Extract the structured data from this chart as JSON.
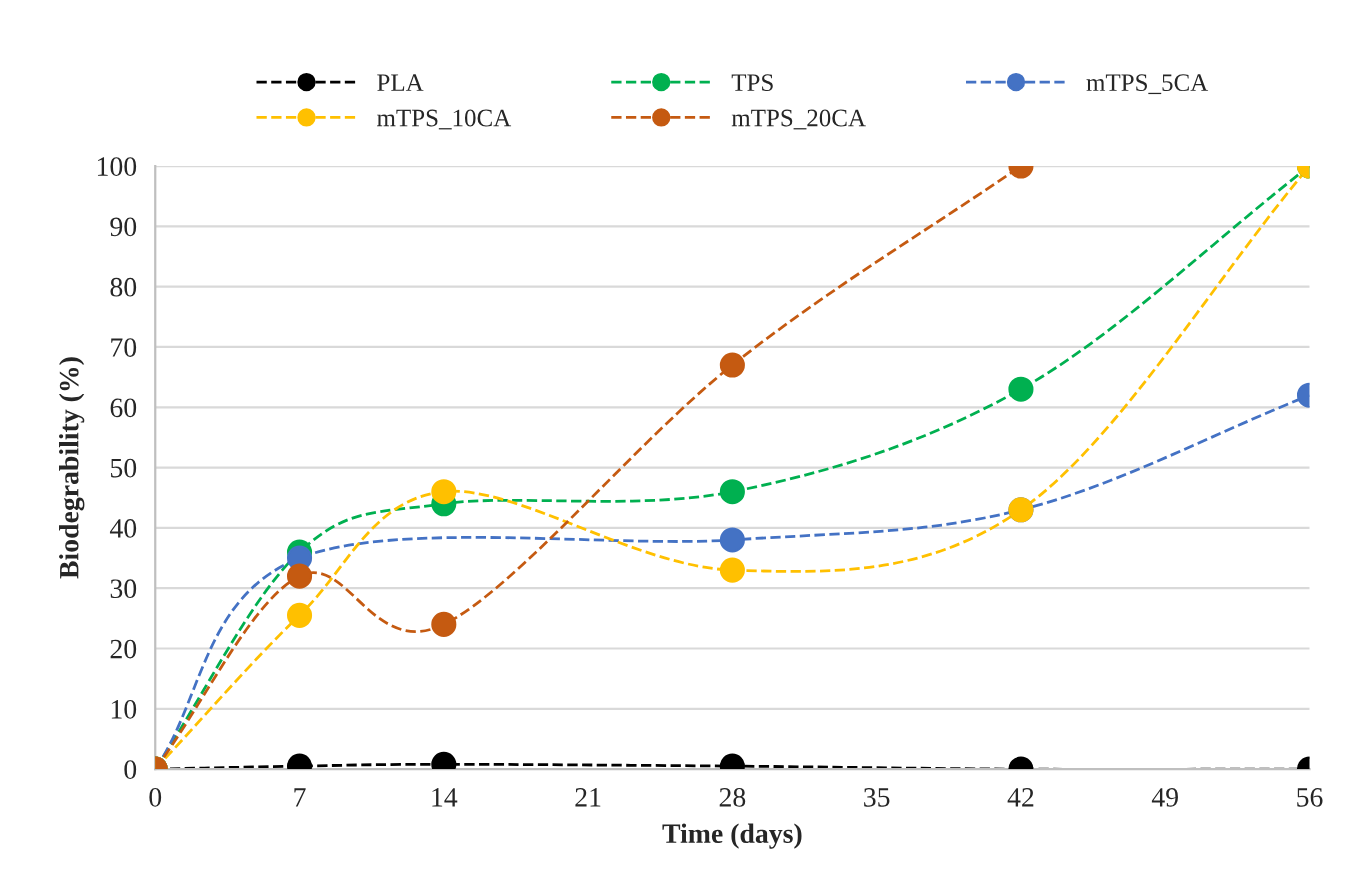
{
  "chart_data": {
    "type": "line",
    "xlabel": "Time (days)",
    "ylabel": "Biodegrability (%)",
    "x": [
      0,
      7,
      14,
      28,
      42,
      56
    ],
    "series": [
      {
        "name": "PLA",
        "color": "#000000",
        "values": [
          0,
          0.5,
          0.8,
          0.5,
          0,
          0
        ]
      },
      {
        "name": "TPS",
        "color": "#00b050",
        "values": [
          0,
          36,
          44,
          46,
          63,
          100
        ]
      },
      {
        "name": "mTPS_5CA",
        "color": "#4472c4",
        "values": [
          0,
          35,
          null,
          38,
          43,
          62
        ]
      },
      {
        "name": "mTPS_10CA",
        "color": "#ffc000",
        "values": [
          0,
          25.5,
          46,
          33,
          43,
          100
        ]
      },
      {
        "name": "mTPS_20CA",
        "color": "#c55a11",
        "values": [
          0,
          32,
          24,
          67,
          100,
          null
        ]
      }
    ],
    "xlim": [
      0,
      56
    ],
    "xticks": [
      0,
      7,
      14,
      21,
      28,
      35,
      42,
      49,
      56
    ],
    "ylim": [
      0,
      100
    ],
    "yticks": [
      0,
      10,
      20,
      30,
      40,
      50,
      60,
      70,
      80,
      90,
      100
    ],
    "grid": "y",
    "legend": "top",
    "marker": "circle",
    "line_style": "dashed"
  }
}
